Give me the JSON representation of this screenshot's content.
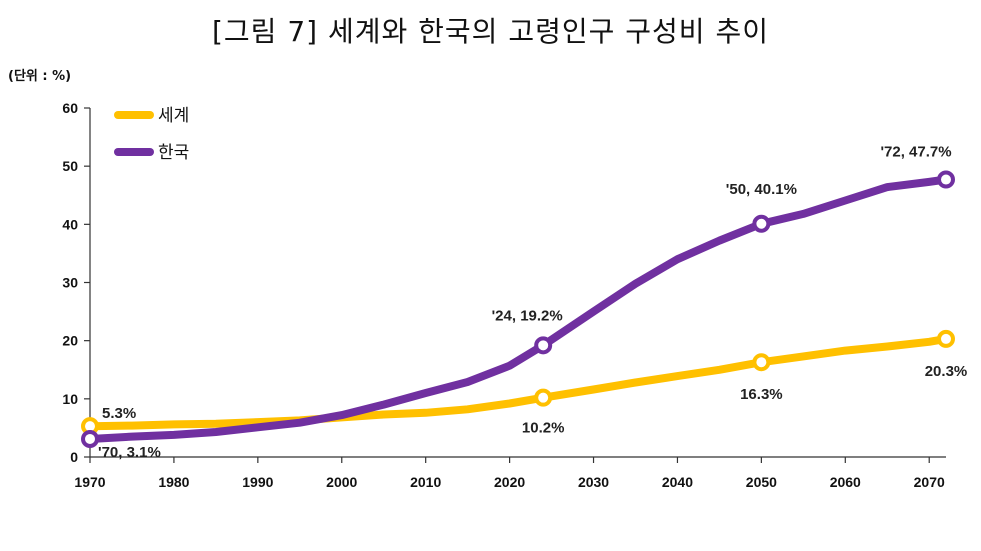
{
  "chart_data": {
    "type": "line",
    "title": "[그림 7] 세계와 한국의 고령인구 구성비 추이",
    "unit_label": "(단위 : %)",
    "xlim": [
      1970,
      2072
    ],
    "ylim": [
      0,
      60
    ],
    "x_ticks": [
      1970,
      1980,
      1990,
      2000,
      2010,
      2020,
      2030,
      2040,
      2050,
      2060,
      2070
    ],
    "y_ticks": [
      0,
      10,
      20,
      30,
      40,
      50,
      60
    ],
    "legend_position": "top-left",
    "series": [
      {
        "name": "세계",
        "color": "#FFC000",
        "x": [
          1970,
          1975,
          1980,
          1985,
          1990,
          1995,
          2000,
          2005,
          2010,
          2015,
          2020,
          2024,
          2030,
          2035,
          2040,
          2045,
          2050,
          2055,
          2060,
          2065,
          2070,
          2072
        ],
        "y": [
          5.3,
          5.4,
          5.6,
          5.7,
          6.0,
          6.3,
          6.8,
          7.3,
          7.6,
          8.2,
          9.2,
          10.2,
          11.6,
          12.8,
          13.9,
          15.0,
          16.3,
          17.3,
          18.3,
          19.0,
          19.8,
          20.3
        ],
        "markers": [
          {
            "x": 1970,
            "y": 5.3,
            "label": "5.3%"
          },
          {
            "x": 2024,
            "y": 10.2,
            "label": "10.2%"
          },
          {
            "x": 2050,
            "y": 16.3,
            "label": "16.3%"
          },
          {
            "x": 2072,
            "y": 20.3,
            "label": "20.3%"
          }
        ]
      },
      {
        "name": "한국",
        "color": "#7030A0",
        "x": [
          1970,
          1975,
          1980,
          1985,
          1990,
          1995,
          2000,
          2005,
          2010,
          2015,
          2020,
          2024,
          2030,
          2035,
          2040,
          2045,
          2050,
          2055,
          2060,
          2065,
          2070,
          2072
        ],
        "y": [
          3.1,
          3.5,
          3.8,
          4.3,
          5.1,
          5.9,
          7.2,
          9.0,
          11.0,
          12.9,
          15.7,
          19.2,
          25.0,
          29.8,
          34.0,
          37.2,
          40.1,
          41.8,
          44.1,
          46.4,
          47.3,
          47.7
        ],
        "markers": [
          {
            "x": 1970,
            "y": 3.1,
            "label": "'70, 3.1%"
          },
          {
            "x": 2024,
            "y": 19.2,
            "label": "'24, 19.2%"
          },
          {
            "x": 2050,
            "y": 40.1,
            "label": "'50, 40.1%"
          },
          {
            "x": 2072,
            "y": 47.7,
            "label": "'72, 47.7%"
          }
        ]
      }
    ]
  }
}
